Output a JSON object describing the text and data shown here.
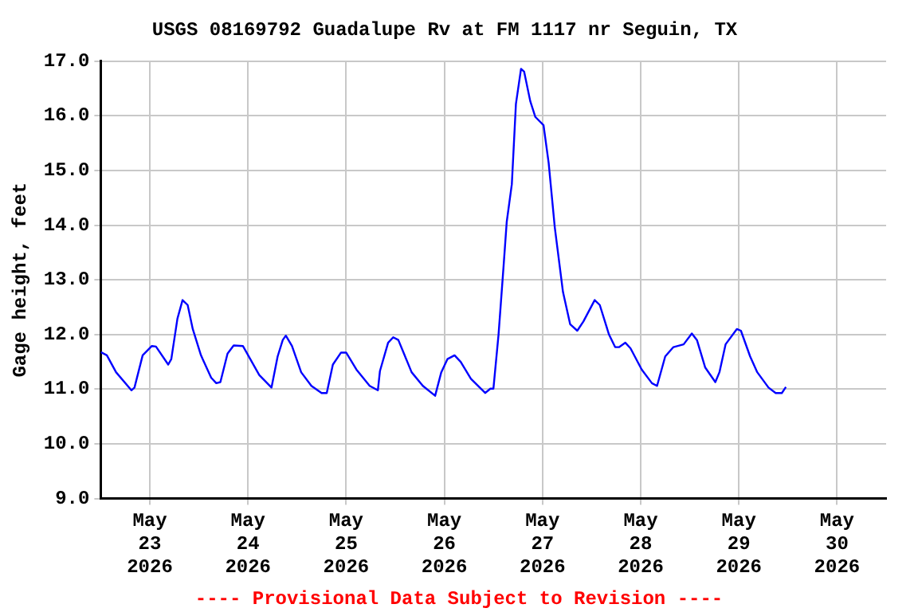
{
  "chart_data": {
    "type": "line",
    "title": "USGS 08169792 Guadalupe Rv at FM 1117 nr Seguin, TX",
    "ylabel": "Gage height, feet",
    "annotations": [
      "---- Provisional Data Subject to Revision ----"
    ],
    "grid": true,
    "marker": "none",
    "line_style": "solid",
    "legend": false,
    "xlim": [
      "2026-05-22T12:00",
      "2026-05-30T12:00"
    ],
    "xticks": [
      {
        "value": "2026-05-23",
        "label": "May 23 2026"
      },
      {
        "value": "2026-05-24",
        "label": "May 24 2026"
      },
      {
        "value": "2026-05-25",
        "label": "May 25 2026"
      },
      {
        "value": "2026-05-26",
        "label": "May 26 2026"
      },
      {
        "value": "2026-05-27",
        "label": "May 27 2026"
      },
      {
        "value": "2026-05-28",
        "label": "May 28 2026"
      },
      {
        "value": "2026-05-29",
        "label": "May 29 2026"
      },
      {
        "value": "2026-05-30",
        "label": "May 30 2026"
      }
    ],
    "ylim": [
      9,
      17
    ],
    "yticks": [
      {
        "value": 9,
        "label": "9.0"
      },
      {
        "value": 10,
        "label": "10.0"
      },
      {
        "value": 11,
        "label": "11.0"
      },
      {
        "value": 12,
        "label": "12.0"
      },
      {
        "value": 13,
        "label": "13.0"
      },
      {
        "value": 14,
        "label": "14.0"
      },
      {
        "value": 15,
        "label": "15.0"
      },
      {
        "value": 16,
        "label": "16.0"
      },
      {
        "value": 17,
        "label": "17.0"
      }
    ],
    "x": [
      "2026-05-22T12:00",
      "2026-05-22T13:30",
      "2026-05-22T15:45",
      "2026-05-22T19:30",
      "2026-05-22T20:15",
      "2026-05-22T22:15",
      "2026-05-23T00:30",
      "2026-05-23T01:30",
      "2026-05-23T04:30",
      "2026-05-23T05:15",
      "2026-05-23T06:45",
      "2026-05-23T08:00",
      "2026-05-23T09:15",
      "2026-05-23T10:30",
      "2026-05-23T12:30",
      "2026-05-23T15:00",
      "2026-05-23T16:15",
      "2026-05-23T17:15",
      "2026-05-23T19:00",
      "2026-05-23T20:30",
      "2026-05-23T22:45",
      "2026-05-24T02:45",
      "2026-05-24T05:45",
      "2026-05-24T07:15",
      "2026-05-24T08:30",
      "2026-05-24T09:15",
      "2026-05-24T10:45",
      "2026-05-24T13:00",
      "2026-05-24T15:30",
      "2026-05-24T18:00",
      "2026-05-24T19:15",
      "2026-05-24T20:45",
      "2026-05-24T22:45",
      "2026-05-25T00:00",
      "2026-05-25T02:30",
      "2026-05-25T05:45",
      "2026-05-25T07:45",
      "2026-05-25T08:15",
      "2026-05-25T10:15",
      "2026-05-25T11:30",
      "2026-05-25T12:45",
      "2026-05-25T16:00",
      "2026-05-25T18:45",
      "2026-05-25T21:45",
      "2026-05-25T23:15",
      "2026-05-26T00:45",
      "2026-05-26T02:30",
      "2026-05-26T04:00",
      "2026-05-26T06:30",
      "2026-05-26T10:00",
      "2026-05-26T11:15",
      "2026-05-26T12:00",
      "2026-05-26T13:15",
      "2026-05-26T14:30",
      "2026-05-26T15:15",
      "2026-05-26T16:30",
      "2026-05-26T17:30",
      "2026-05-26T18:45",
      "2026-05-26T19:30",
      "2026-05-26T21:00",
      "2026-05-26T22:15",
      "2026-05-27T00:15",
      "2026-05-27T01:30",
      "2026-05-27T03:00",
      "2026-05-27T05:00",
      "2026-05-27T06:45",
      "2026-05-27T08:30",
      "2026-05-27T10:00",
      "2026-05-27T12:45",
      "2026-05-27T14:00",
      "2026-05-27T16:15",
      "2026-05-27T17:45",
      "2026-05-27T18:45",
      "2026-05-27T20:15",
      "2026-05-27T21:30",
      "2026-05-28T00:15",
      "2026-05-28T02:45",
      "2026-05-28T04:00",
      "2026-05-28T06:00",
      "2026-05-28T08:00",
      "2026-05-28T10:30",
      "2026-05-28T12:30",
      "2026-05-28T13:45",
      "2026-05-28T15:45",
      "2026-05-28T18:15",
      "2026-05-28T19:15",
      "2026-05-28T20:45",
      "2026-05-28T23:30",
      "2026-05-29T00:30",
      "2026-05-29T02:45",
      "2026-05-29T04:30",
      "2026-05-29T07:15",
      "2026-05-29T09:00",
      "2026-05-29T10:30",
      "2026-05-29T11:30"
    ],
    "series": [
      {
        "color": "#0000ff",
        "values": [
          11.68,
          11.62,
          11.31,
          10.98,
          11.03,
          11.62,
          11.79,
          11.78,
          11.45,
          11.55,
          12.29,
          12.63,
          12.54,
          12.1,
          11.62,
          11.21,
          11.11,
          11.13,
          11.65,
          11.8,
          11.79,
          11.26,
          11.03,
          11.6,
          11.9,
          11.98,
          11.79,
          11.31,
          11.06,
          10.93,
          10.93,
          11.45,
          11.67,
          11.67,
          11.36,
          11.06,
          10.98,
          11.33,
          11.85,
          11.95,
          11.9,
          11.31,
          11.06,
          10.88,
          11.31,
          11.55,
          11.62,
          11.5,
          11.19,
          10.93,
          11.01,
          11.01,
          12.0,
          13.27,
          14.06,
          14.75,
          16.22,
          16.86,
          16.81,
          16.27,
          15.98,
          15.83,
          15.14,
          13.96,
          12.78,
          12.19,
          12.07,
          12.24,
          12.63,
          12.54,
          12.0,
          11.77,
          11.77,
          11.85,
          11.75,
          11.36,
          11.11,
          11.06,
          11.6,
          11.77,
          11.82,
          12.02,
          11.9,
          11.4,
          11.13,
          11.31,
          11.82,
          12.1,
          12.07,
          11.6,
          11.31,
          11.03,
          10.93,
          10.93,
          11.04
        ]
      }
    ]
  }
}
